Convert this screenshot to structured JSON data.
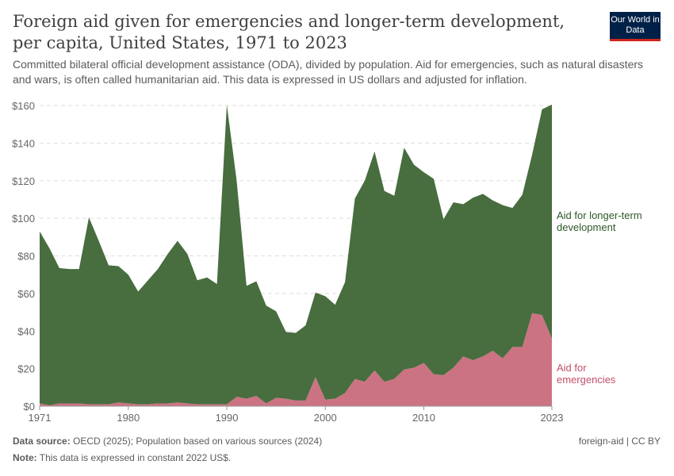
{
  "header": {
    "title": "Foreign aid given for emergencies and longer-term development, per capita, United States, 1971 to 2023",
    "subtitle": "Committed bilateral official development assistance (ODA), divided by population. Aid for emergencies, such as natural disasters and wars, is often called humanitarian aid. This data is expressed in US dollars and adjusted for inflation.",
    "logo": "Our World in Data"
  },
  "footer": {
    "source_label": "Data source:",
    "source": "OECD (2025); Population based on various sources (2024)",
    "note_label": "Note:",
    "note": "This data is expressed in constant 2022 US$.",
    "license": "foreign-aid | CC BY"
  },
  "chart_data": {
    "type": "area",
    "stacked": true,
    "grid": "horizontal dashed",
    "xlim": [
      1971,
      2023
    ],
    "ylim": [
      0,
      160
    ],
    "x_ticks": [
      "1971",
      "1980",
      "1990",
      "2000",
      "2010",
      "2023"
    ],
    "y_ticks": [
      "$0",
      "$20",
      "$40",
      "$60",
      "$80",
      "$100",
      "$120",
      "$140",
      "$160"
    ],
    "x": [
      1971,
      1972,
      1973,
      1974,
      1975,
      1976,
      1977,
      1978,
      1979,
      1980,
      1981,
      1982,
      1983,
      1984,
      1985,
      1986,
      1987,
      1988,
      1989,
      1990,
      1991,
      1992,
      1993,
      1994,
      1995,
      1996,
      1997,
      1998,
      1999,
      2000,
      2001,
      2002,
      2003,
      2004,
      2005,
      2006,
      2007,
      2008,
      2009,
      2010,
      2011,
      2012,
      2013,
      2014,
      2015,
      2016,
      2017,
      2018,
      2019,
      2020,
      2021,
      2022,
      2023
    ],
    "series": [
      {
        "name": "Aid for emergencies",
        "color": "#cc7383",
        "values": [
          1.5,
          0.5,
          1.5,
          1.5,
          1.5,
          1,
          1,
          1,
          2,
          1.5,
          1,
          1,
          1.5,
          1.5,
          2,
          1.5,
          1,
          1,
          1,
          1,
          5,
          4,
          5.5,
          1.5,
          4.5,
          4,
          3,
          3,
          15.5,
          3.5,
          4,
          7,
          14.5,
          13,
          19,
          13,
          14.5,
          19.5,
          20.5,
          23,
          17,
          16.5,
          20.5,
          26.5,
          24.5,
          26.5,
          29.5,
          25.5,
          31.5,
          31.5,
          49.5,
          48.5,
          36
        ]
      },
      {
        "name": "Aid for longer-term development",
        "color": "#486d3f",
        "values": [
          91.5,
          83.5,
          72,
          71.5,
          71.5,
          99.5,
          87,
          74,
          72.5,
          68.5,
          60,
          66,
          71.5,
          79.5,
          86,
          79.5,
          66,
          67.5,
          64,
          159.5,
          115,
          60,
          61,
          52,
          46,
          35.5,
          36,
          40,
          45,
          55,
          50,
          59,
          96,
          107,
          116.5,
          101.5,
          97.5,
          118,
          108,
          101.5,
          104,
          83,
          88,
          81,
          86.5,
          86.5,
          80,
          81.5,
          74,
          81,
          84.5,
          109.5,
          124.5
        ]
      }
    ],
    "legend_labels": [
      [
        "Aid for longer-term",
        "development"
      ],
      [
        "Aid for",
        "emergencies"
      ]
    ]
  }
}
